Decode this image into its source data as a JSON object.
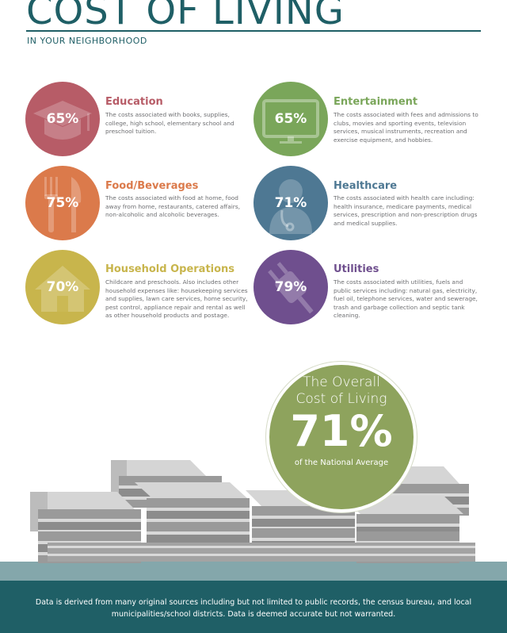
{
  "header": {
    "title": "COST OF LIVING",
    "subtitle": "IN YOUR NEIGHBORHOOD"
  },
  "categories": [
    {
      "name": "Education",
      "percent": "65%",
      "color": "#b75c67",
      "icon": "graduation-cap-icon",
      "description": "The costs associated with books, supplies, college, high school, elementary school and preschool tuition."
    },
    {
      "name": "Entertainment",
      "percent": "65%",
      "color": "#7aa65a",
      "icon": "television-icon",
      "description": "The costs associated with fees and admissions to clubs, movies and sporting events, television services, musical instruments, recreation and exercise equipment, and hobbies."
    },
    {
      "name": "Food/Beverages",
      "percent": "75%",
      "color": "#db7a4b",
      "icon": "fork-knife-icon",
      "description": "The costs associated with food at home, food away from home, restaurants, catered affairs, non-alcoholic and alcoholic beverages."
    },
    {
      "name": "Healthcare",
      "percent": "71%",
      "color": "#4e7893",
      "icon": "doctor-icon",
      "description": "The costs associated with health care including: health insurance, medicare payments, medical services, prescription and non-prescription drugs and medical supplies."
    },
    {
      "name": "Household Operations",
      "percent": "70%",
      "color": "#c8b54c",
      "icon": "house-icon",
      "description": "Childcare and preschools. Also includes other household expenses like: housekeeping services and supplies, lawn care services, home security, pest control, appliance repair and rental as well as other household products and postage."
    },
    {
      "name": "Utilities",
      "percent": "79%",
      "color": "#6f4f8e",
      "icon": "plug-icon",
      "description": "The costs associated with utilities, fuels and public services including: natural gas, electricity, fuel oil, telephone services, water and sewerage, trash and garbage collection and septic tank cleaning."
    }
  ],
  "overall": {
    "line1": "The Overall",
    "line2": "Cost of Living",
    "percent": "71%",
    "caption": "of the National Average",
    "color": "#8ea35d"
  },
  "footer": {
    "text": "Data is derived from many original sources including but not limited to public records, the census bureau, and local municipalities/school districts. Data is deemed accurate but not warranted."
  }
}
